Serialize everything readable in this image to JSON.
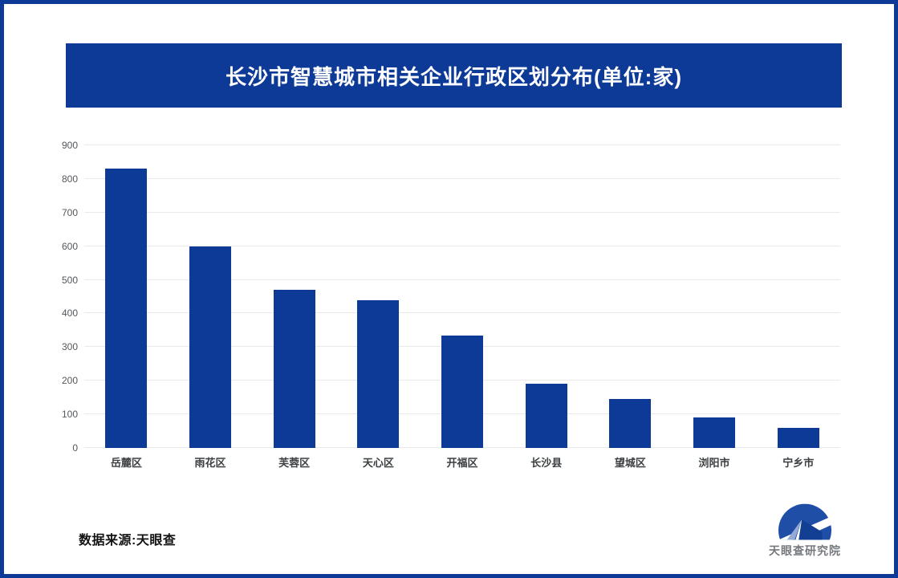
{
  "frame": {
    "border_color": "#0d3a96",
    "background": "#ffffff"
  },
  "banner": {
    "title": "长沙市智慧城市相关企业行政区划分布(单位:家)",
    "bg": "#0d3a96",
    "text_color": "#ffffff"
  },
  "chart_data": {
    "type": "bar",
    "title": "长沙市智慧城市相关企业行政区划分布(单位:家)",
    "categories": [
      "岳麓区",
      "雨花区",
      "芙蓉区",
      "天心区",
      "开福区",
      "长沙县",
      "望城区",
      "浏阳市",
      "宁乡市"
    ],
    "values": [
      830,
      600,
      470,
      440,
      335,
      190,
      145,
      90,
      60
    ],
    "xlabel": "",
    "ylabel": "",
    "ylim": [
      0,
      900
    ],
    "ytick_step": 100,
    "grid": true,
    "legend": false,
    "bar_color": "#0d3a96",
    "gridline_color": "#e9e9eb",
    "tick_label_color": "#54575b"
  },
  "footer": {
    "source": "数据来源:天眼查",
    "logo_text": "天眼查研究院",
    "logo_colors": {
      "circle": "#1e4ea6",
      "house": "#133f92",
      "roof_light": "#93a9d6"
    }
  }
}
